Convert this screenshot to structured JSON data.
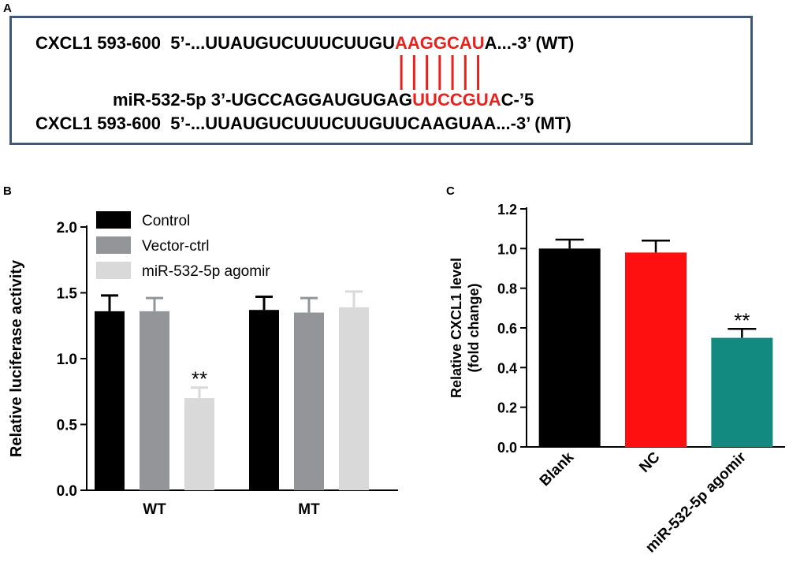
{
  "panel_a": {
    "letter": "A",
    "wt_line": {
      "gene": "CXCL1 593-600",
      "prefix": "5’-...UUAUGUCUUUCUUGU",
      "site": "AAGGCAU",
      "suffix": "A...-3’",
      "tag": "(WT)"
    },
    "mir_line": {
      "name": "miR-532-5p",
      "prefix": "3’-UGCCAGGAUGUGAG",
      "site": "UUCCGUA",
      "suffix": "C-’5"
    },
    "mt_line": {
      "gene": "CXCL1 593-600",
      "seq": "5’-...UUAUGUCUUUCUUGUUCAAGUAA...-3’",
      "tag": "(MT)"
    },
    "pair_color": "#e8201e",
    "border_color": "#3f5873"
  },
  "chart_data": [
    {
      "panel": "B",
      "type": "bar",
      "ylabel": "Relative luciferase activity",
      "ylim": [
        0,
        2.0
      ],
      "yticks": [
        "0.0",
        "0.5",
        "1.0",
        "1.5",
        "2.0"
      ],
      "categories": [
        "WT",
        "MT"
      ],
      "legend_position": "top-left",
      "series": [
        {
          "name": "Control",
          "color": "#000000",
          "values": [
            1.36,
            1.37
          ],
          "errors": [
            0.12,
            0.1
          ]
        },
        {
          "name": "Vector-ctrl",
          "color": "#939598",
          "values": [
            1.36,
            1.35
          ],
          "errors": [
            0.1,
            0.11
          ]
        },
        {
          "name": "miR-532-5p agomir",
          "color": "#d9d9d9",
          "values": [
            0.7,
            1.39
          ],
          "errors": [
            0.08,
            0.12
          ]
        }
      ],
      "annotations": [
        {
          "category": "WT",
          "series": "miR-532-5p agomir",
          "text": "**"
        }
      ]
    },
    {
      "panel": "C",
      "type": "bar",
      "ylabel": "Relative CXCL1 level (fold change)",
      "ylabel_lines": [
        "Relative CXCL1 level",
        "(fold change)"
      ],
      "ylim": [
        0,
        1.2
      ],
      "yticks": [
        "0.0",
        "0.2",
        "0.4",
        "0.6",
        "0.8",
        "1.0",
        "1.2"
      ],
      "categories": [
        "Blank",
        "NC",
        "miR-532-5p agomir"
      ],
      "values": [
        1.0,
        0.98,
        0.55
      ],
      "errors": [
        0.045,
        0.06,
        0.045
      ],
      "colors": [
        "#000000",
        "#fe1010",
        "#138a80"
      ],
      "annotations": [
        {
          "category": "miR-532-5p agomir",
          "text": "**"
        }
      ]
    }
  ]
}
